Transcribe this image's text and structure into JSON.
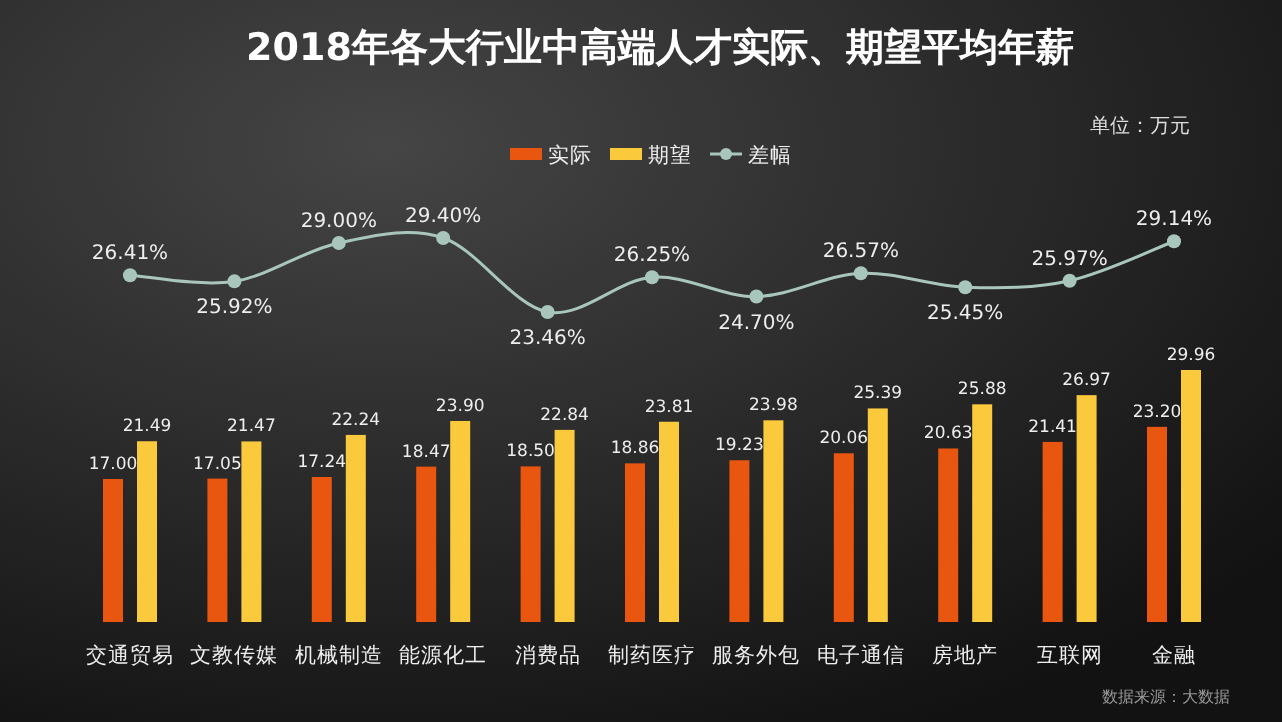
{
  "chart_data": [
    {
      "type": "line",
      "title": "2018年各大行业中高端人才实际、期望平均年薪",
      "categories": [
        null,
        null,
        null,
        null,
        null,
        null,
        null,
        null,
        null,
        null,
        null
      ],
      "series": [
        {
          "name": "差幅",
          "marker": "circle",
          "color": "#a9c6bd",
          "values": [
            26.41,
            25.92,
            29.0,
            29.4,
            23.46,
            26.25,
            24.7,
            26.57,
            25.45,
            25.97,
            29.14
          ],
          "value_labels": [
            "26.41%",
            "25.92%",
            "29.00%",
            "29.40%",
            "23.46%",
            "26.25%",
            "24.70%",
            "26.57%",
            "25.45%",
            "25.97%",
            "29.14%"
          ]
        }
      ],
      "legend": "top"
    },
    {
      "type": "bar",
      "categories": [
        "交通贸易",
        "文教传媒",
        "机械制造",
        "能源化工",
        "消费品",
        "制药医疗",
        "服务外包",
        "电子通信",
        "房地产",
        "互联网",
        "金融"
      ],
      "series": [
        {
          "name": "实际",
          "color": "#e8560f",
          "values": [
            17.0,
            17.05,
            17.24,
            18.47,
            18.5,
            18.86,
            19.23,
            20.06,
            20.63,
            21.41,
            23.2
          ],
          "value_labels": [
            "17.00",
            "17.05",
            "17.24",
            "18.47",
            "18.50",
            "18.86",
            "19.23",
            "20.06",
            "20.63",
            "21.41",
            "23.20"
          ]
        },
        {
          "name": "期望",
          "color": "#fbc93c",
          "values": [
            21.49,
            21.47,
            22.24,
            23.9,
            22.84,
            23.81,
            23.98,
            25.39,
            25.88,
            26.97,
            29.96
          ],
          "value_labels": [
            "21.49",
            "21.47",
            "22.24",
            "23.90",
            "22.84",
            "23.81",
            "23.98",
            "25.39",
            "25.88",
            "26.97",
            "29.96"
          ]
        }
      ],
      "legend": "top",
      "annotations": [
        "单位：万元",
        "数据来源：大数据"
      ]
    }
  ]
}
